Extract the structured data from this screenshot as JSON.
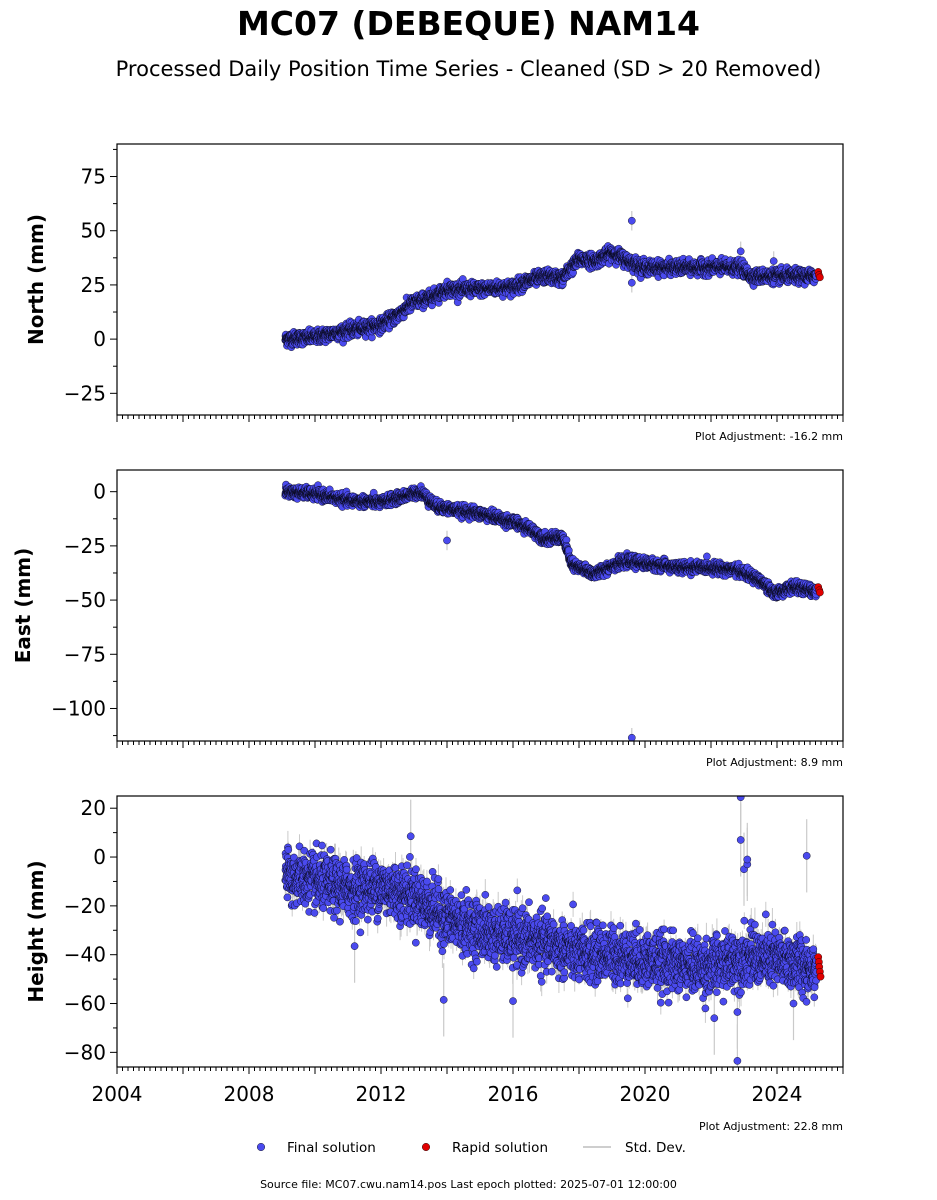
{
  "title": "MC07 (DEBEQUE) NAM14",
  "subtitle": "Processed Daily Position Time Series - Cleaned (SD > 20 Removed)",
  "footer": "Source file: MC07.cwu.nam14.pos  Last epoch plotted: 2025-07-01 12:00:00",
  "colors": {
    "final": "#4a4aee",
    "rapid": "#e00000",
    "stddev": "#bdbdbd",
    "edge": "#000000"
  },
  "legend": [
    {
      "label": "Final solution",
      "color": "#4a4aee",
      "kind": "dot"
    },
    {
      "label": "Rapid solution",
      "color": "#e00000",
      "kind": "dot"
    },
    {
      "label": "Std. Dev.",
      "color": "#bdbdbd",
      "kind": "line"
    }
  ],
  "chart_data": [
    {
      "type": "scatter",
      "name": "north",
      "ylabel": "North (mm)",
      "xlim": [
        2004,
        2026
      ],
      "ylim": [
        -35,
        90
      ],
      "yticks": [
        -25,
        0,
        25,
        50,
        75
      ],
      "yticklabels": [
        "−25",
        "0",
        "25",
        "50",
        "75"
      ],
      "adjustment": "Plot Adjustment: -16.2 mm",
      "trend": [
        [
          2009.1,
          0
        ],
        [
          2010,
          1
        ],
        [
          2011,
          4
        ],
        [
          2012,
          6.5
        ],
        [
          2012.5,
          11
        ],
        [
          2013,
          17
        ],
        [
          2013.5,
          19
        ],
        [
          2014,
          23
        ],
        [
          2015,
          23
        ],
        [
          2016,
          24
        ],
        [
          2016.5,
          27
        ],
        [
          2017,
          29
        ],
        [
          2017.5,
          28
        ],
        [
          2018,
          37
        ],
        [
          2018.5,
          36
        ],
        [
          2019,
          40
        ],
        [
          2019.5,
          36
        ],
        [
          2020,
          33
        ],
        [
          2021,
          33
        ],
        [
          2022,
          33
        ],
        [
          2022.9,
          33
        ],
        [
          2023.2,
          29
        ],
        [
          2024,
          29
        ],
        [
          2025.2,
          29
        ]
      ],
      "noise": 1.5,
      "sd": 1.5,
      "outliers": [
        [
          2019.6,
          54.6
        ],
        [
          2019.6,
          26
        ],
        [
          2022.9,
          40.5
        ],
        [
          2023.9,
          36
        ]
      ],
      "rapid": [
        [
          2025.25,
          31
        ],
        [
          2025.27,
          29.5
        ],
        [
          2025.3,
          28.5
        ]
      ]
    },
    {
      "type": "scatter",
      "name": "east",
      "ylabel": "East (mm)",
      "xlim": [
        2004,
        2026
      ],
      "ylim": [
        -115,
        10
      ],
      "yticks": [
        -100,
        -75,
        -50,
        -25,
        0
      ],
      "yticklabels": [
        "−100",
        "−75",
        "−50",
        "−25",
        "0"
      ],
      "adjustment": "Plot Adjustment: 8.9 mm",
      "trend": [
        [
          2009.1,
          0
        ],
        [
          2010,
          -1
        ],
        [
          2011,
          -4
        ],
        [
          2012,
          -5
        ],
        [
          2012.5,
          -3
        ],
        [
          2013.2,
          0
        ],
        [
          2013.7,
          -7
        ],
        [
          2014.5,
          -9
        ],
        [
          2015.3,
          -11
        ],
        [
          2016,
          -14
        ],
        [
          2016.5,
          -17
        ],
        [
          2017,
          -22
        ],
        [
          2017.5,
          -21
        ],
        [
          2017.8,
          -34
        ],
        [
          2018.5,
          -38
        ],
        [
          2019,
          -34
        ],
        [
          2019.5,
          -32
        ],
        [
          2020,
          -33
        ],
        [
          2021,
          -35
        ],
        [
          2022,
          -35
        ],
        [
          2022.8,
          -36
        ],
        [
          2023.5,
          -41
        ],
        [
          2023.9,
          -47
        ],
        [
          2024.5,
          -44
        ],
        [
          2025.2,
          -46
        ]
      ],
      "noise": 1.2,
      "sd": 1.5,
      "outliers": [
        [
          2014.0,
          -22.5
        ],
        [
          2019.6,
          -113.5
        ]
      ],
      "rapid": [
        [
          2025.25,
          -44
        ],
        [
          2025.28,
          -45.5
        ],
        [
          2025.3,
          -46.5
        ]
      ]
    },
    {
      "type": "scatter",
      "name": "height",
      "ylabel": "Height (mm)",
      "xlim": [
        2004,
        2026
      ],
      "ylim": [
        -86,
        25
      ],
      "yticks": [
        -80,
        -60,
        -40,
        -20,
        0,
        20
      ],
      "yticklabels": [
        "−80",
        "−60",
        "−40",
        "−20",
        "0",
        "20"
      ],
      "xticks": [
        2004,
        2008,
        2012,
        2016,
        2020,
        2024
      ],
      "xticklabels": [
        "2004",
        "2008",
        "2012",
        "2016",
        "2020",
        "2024"
      ],
      "adjustment": "Plot Adjustment: 22.8 mm",
      "trend": [
        [
          2009.1,
          -8
        ],
        [
          2010,
          -10
        ],
        [
          2011,
          -13
        ],
        [
          2012,
          -12
        ],
        [
          2013,
          -16
        ],
        [
          2014,
          -25
        ],
        [
          2015,
          -30
        ],
        [
          2016,
          -33
        ],
        [
          2017,
          -35
        ],
        [
          2018,
          -40
        ],
        [
          2019,
          -40
        ],
        [
          2020,
          -42
        ],
        [
          2021,
          -44
        ],
        [
          2022,
          -45
        ],
        [
          2023,
          -41
        ],
        [
          2024,
          -42
        ],
        [
          2025.2,
          -45
        ]
      ],
      "noise": 5.5,
      "sd": 5,
      "outliers": [
        [
          2011.2,
          -36.5
        ],
        [
          2012.9,
          8.5
        ],
        [
          2013.9,
          -58.5
        ],
        [
          2016.0,
          -59
        ],
        [
          2022.1,
          -66
        ],
        [
          2022.8,
          -83.5
        ],
        [
          2022.9,
          24.5
        ],
        [
          2022.9,
          7
        ],
        [
          2023.0,
          -5
        ],
        [
          2023.1,
          -3
        ],
        [
          2023.1,
          -1
        ],
        [
          2024.9,
          0.5
        ],
        [
          2024.5,
          -60
        ],
        [
          2022.8,
          -63.5
        ]
      ],
      "rapid": [
        [
          2025.25,
          -41
        ],
        [
          2025.27,
          -43
        ],
        [
          2025.28,
          -45
        ],
        [
          2025.3,
          -47
        ],
        [
          2025.32,
          -49
        ]
      ]
    }
  ]
}
